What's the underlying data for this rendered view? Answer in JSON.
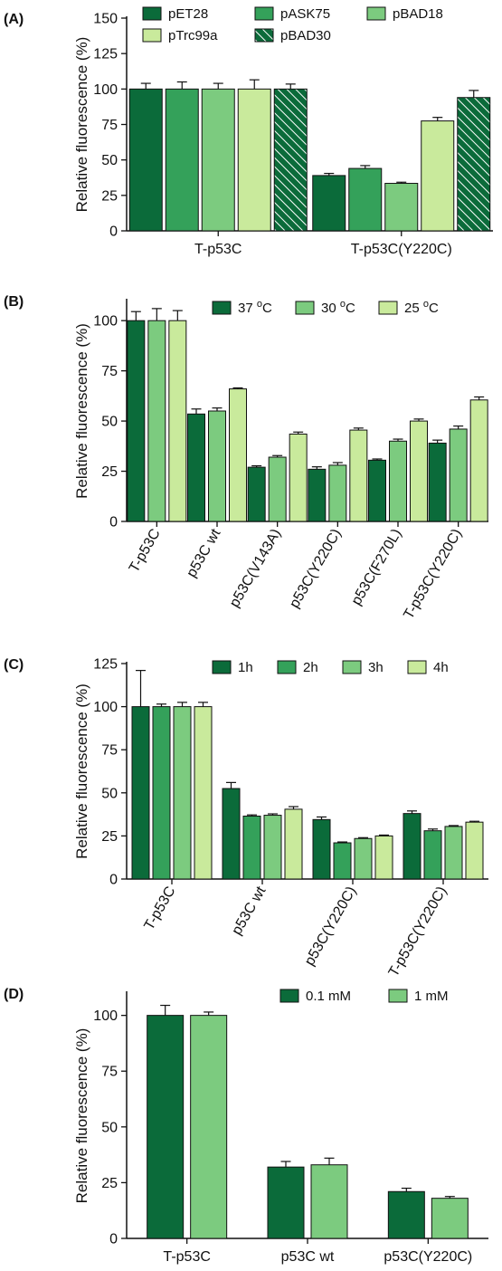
{
  "colors": {
    "dark": "#0b6b3a",
    "mid": "#34a15a",
    "light": "#7ccb7f",
    "pale": "#c9ea9c",
    "edge": "#111111"
  },
  "chart_data": [
    {
      "type": "bar",
      "panel_label": "(A)",
      "ylabel": "Relative fluorescence (%)",
      "ylim": [
        0,
        150
      ],
      "yticks": [
        0,
        25,
        50,
        75,
        100,
        125,
        150
      ],
      "categories": [
        "T-p53C",
        "T-p53C(Y220C)"
      ],
      "legend_position": "top",
      "series": [
        {
          "name": "pET28",
          "color": "dark",
          "values": [
            100,
            39
          ],
          "errors": [
            4,
            1.5
          ]
        },
        {
          "name": "pASK75",
          "color": "mid",
          "values": [
            100,
            44
          ],
          "errors": [
            5,
            2
          ]
        },
        {
          "name": "pBAD18",
          "color": "light",
          "values": [
            100,
            33.5
          ],
          "errors": [
            4,
            0.8
          ]
        },
        {
          "name": "pTrc99a",
          "color": "pale",
          "values": [
            100,
            77.5
          ],
          "errors": [
            6.5,
            2.5
          ]
        },
        {
          "name": "pBAD30",
          "color": "dark",
          "hatched": true,
          "values": [
            100,
            94
          ],
          "errors": [
            3.5,
            5
          ]
        }
      ]
    },
    {
      "type": "bar",
      "panel_label": "(B)",
      "ylabel": "Relative fluorescence (%)",
      "ylim": [
        0,
        110
      ],
      "yticks": [
        0,
        25,
        50,
        75,
        100
      ],
      "categories": [
        "T-p53C",
        "p53C wt",
        "p53C(V143A)",
        "p53C(Y220C)",
        "p53C(F270L)",
        "T-p53C(Y220C)"
      ],
      "legend_position": "top-right",
      "series": [
        {
          "name": "37",
          "unit": "C",
          "color": "dark",
          "values": [
            100,
            53.5,
            27,
            26,
            30.5,
            39
          ],
          "errors": [
            4.5,
            2.5,
            0.7,
            1.2,
            0.6,
            1.5
          ]
        },
        {
          "name": "30",
          "unit": "C",
          "color": "light",
          "values": [
            100,
            55,
            32,
            28,
            40,
            46
          ],
          "errors": [
            6,
            1.5,
            0.8,
            1.3,
            1,
            1.5
          ]
        },
        {
          "name": "25",
          "unit": "C",
          "color": "pale",
          "values": [
            100,
            66,
            43.5,
            45.5,
            50,
            60.5
          ],
          "errors": [
            5,
            0.5,
            1,
            1,
            1,
            1.5
          ]
        }
      ]
    },
    {
      "type": "bar",
      "panel_label": "(C)",
      "ylabel": "Relative fluorescence (%)",
      "ylim": [
        0,
        125
      ],
      "yticks": [
        0,
        25,
        50,
        75,
        100,
        125
      ],
      "categories": [
        "T-p53C",
        "p53C wt",
        "p53C(Y220C)",
        "T-p53C(Y220C)"
      ],
      "legend_position": "top-right",
      "series": [
        {
          "name": "1h",
          "color": "dark",
          "values": [
            100,
            52.5,
            34.5,
            38
          ],
          "errors": [
            21,
            3.5,
            1.5,
            1.5
          ]
        },
        {
          "name": "2h",
          "color": "mid",
          "values": [
            100,
            36.5,
            21,
            28
          ],
          "errors": [
            1.5,
            0.7,
            0.5,
            1
          ]
        },
        {
          "name": "3h",
          "color": "light",
          "values": [
            100,
            37,
            23.5,
            30.5
          ],
          "errors": [
            2.5,
            0.8,
            0.5,
            0.5
          ]
        },
        {
          "name": "4h",
          "color": "pale",
          "values": [
            100,
            40.5,
            25,
            33
          ],
          "errors": [
            2.5,
            1.5,
            0.5,
            0.5
          ]
        }
      ]
    },
    {
      "type": "bar",
      "panel_label": "(D)",
      "ylabel": "Relative fluorescence (%)",
      "ylim": [
        0,
        110
      ],
      "yticks": [
        0,
        25,
        50,
        75,
        100
      ],
      "categories": [
        "T-p53C",
        "p53C wt",
        "p53C(Y220C)"
      ],
      "legend_position": "top-right",
      "series": [
        {
          "name": "0.1 mM",
          "color": "dark",
          "values": [
            100,
            32,
            21
          ],
          "errors": [
            4.5,
            2.5,
            1.5
          ]
        },
        {
          "name": "1 mM",
          "color": "light",
          "values": [
            100,
            33,
            18
          ],
          "errors": [
            1.5,
            3,
            0.8
          ]
        }
      ]
    }
  ]
}
